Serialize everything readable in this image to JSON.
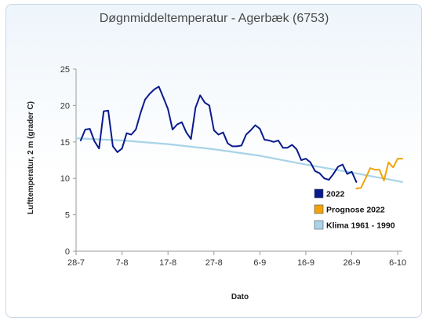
{
  "chart_data": {
    "type": "line",
    "title": "Døgnmiddeltemperatur - Agerbæk (6753)",
    "xlabel": "Dato",
    "ylabel": "Lufttemperatur, 2 m (grader C)",
    "ylim": [
      0,
      25
    ],
    "yticks": [
      0,
      5,
      10,
      15,
      20,
      25
    ],
    "x_day_range": [
      0,
      71
    ],
    "xticks": [
      {
        "day": 0,
        "label": "28-7"
      },
      {
        "day": 10,
        "label": "7-8"
      },
      {
        "day": 20,
        "label": "17-8"
      },
      {
        "day": 30,
        "label": "27-8"
      },
      {
        "day": 40,
        "label": "6-9"
      },
      {
        "day": 50,
        "label": "16-9"
      },
      {
        "day": 60,
        "label": "26-9"
      },
      {
        "day": 70,
        "label": "6-10"
      }
    ],
    "grid": false,
    "legend_position": "right",
    "series": [
      {
        "name": "2022",
        "color": "#0a1a8c",
        "x": [
          1,
          2,
          3,
          4,
          5,
          6,
          7,
          8,
          9,
          10,
          11,
          12,
          13,
          14,
          15,
          16,
          17,
          18,
          19,
          20,
          21,
          22,
          23,
          24,
          25,
          26,
          27,
          28,
          29,
          30,
          31,
          32,
          33,
          34,
          35,
          36,
          37,
          38,
          39,
          40,
          41,
          42,
          43,
          44,
          45,
          46,
          47,
          48,
          49,
          50,
          51,
          52,
          53,
          54,
          55,
          56,
          57,
          58,
          59,
          60,
          61
        ],
        "values": [
          15.2,
          16.7,
          16.8,
          15.1,
          14.1,
          19.2,
          19.3,
          14.4,
          13.6,
          14.1,
          16.2,
          16.0,
          16.7,
          18.9,
          20.8,
          21.6,
          22.2,
          22.6,
          21.1,
          19.5,
          16.7,
          17.4,
          17.7,
          16.3,
          15.4,
          19.7,
          21.4,
          20.4,
          20.0,
          16.6,
          16.0,
          16.3,
          14.8,
          14.4,
          14.4,
          14.5,
          16.0,
          16.6,
          17.3,
          16.8,
          15.3,
          15.2,
          15.0,
          15.2,
          14.2,
          14.2,
          14.6,
          14.0,
          12.5,
          12.7,
          12.2,
          11.0,
          10.7,
          10.0,
          9.8,
          10.6,
          11.6,
          11.9,
          10.6,
          10.9,
          9.5
        ]
      },
      {
        "name": "Prognose 2022",
        "color": "#f0a30a",
        "x": [
          61,
          62,
          63,
          64,
          65,
          66,
          67,
          68,
          69,
          70,
          71
        ],
        "values": [
          8.6,
          8.7,
          10.0,
          11.4,
          11.2,
          11.2,
          9.7,
          12.2,
          11.5,
          12.7,
          12.7
        ]
      },
      {
        "name": "Klima 1961 - 1990",
        "color": "#a8d3e8",
        "x": [
          0,
          10,
          20,
          30,
          40,
          50,
          60,
          71
        ],
        "values": [
          15.5,
          15.2,
          14.7,
          14.0,
          13.1,
          11.9,
          10.8,
          9.5
        ]
      }
    ]
  }
}
